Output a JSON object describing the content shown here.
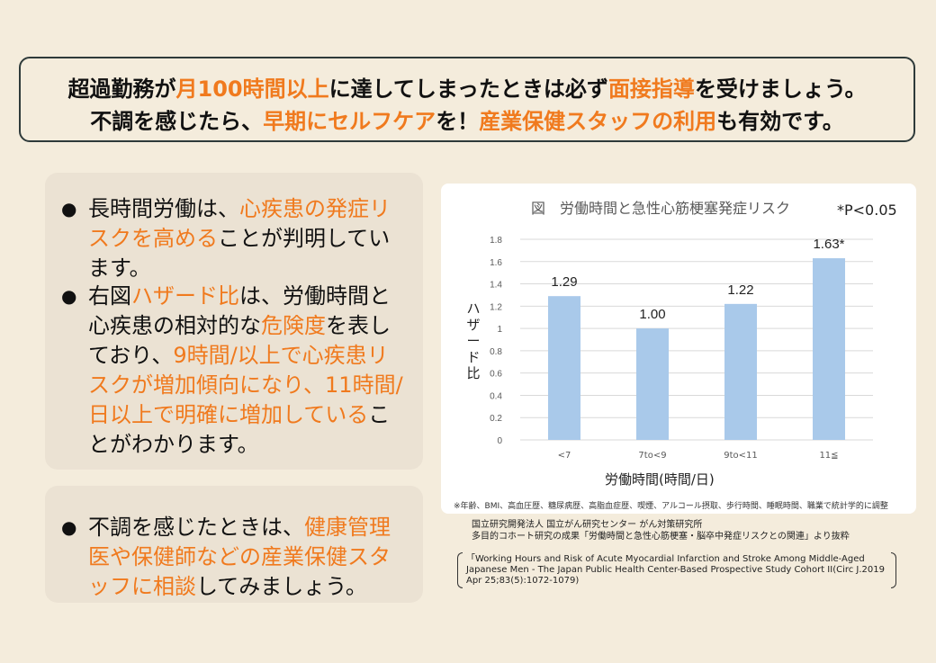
{
  "headline": {
    "line1": [
      {
        "text": "超過勤務が",
        "accent": false
      },
      {
        "text": "月100時間以上",
        "accent": true
      },
      {
        "text": "に達してしまったときは必ず",
        "accent": false
      },
      {
        "text": "面接指導",
        "accent": true
      },
      {
        "text": "を受けましょう。",
        "accent": false
      }
    ],
    "line2": [
      {
        "text": "不調を感じたら、",
        "accent": false
      },
      {
        "text": "早期にセルフケア",
        "accent": true
      },
      {
        "text": "を！",
        "accent": false
      },
      {
        "text": "産業保健スタッフの利用",
        "accent": true
      },
      {
        "text": "も有効です。",
        "accent": false
      }
    ]
  },
  "bullets_panel1": {
    "b1": [
      {
        "text": "長時間労働は、",
        "accent": false
      },
      {
        "text": "心疾患の発症リスクを高める",
        "accent": true
      },
      {
        "text": "ことが判明しています。",
        "accent": false
      }
    ],
    "b2": [
      {
        "text": "右図",
        "accent": false
      },
      {
        "text": "ハザード比",
        "accent": true
      },
      {
        "text": "は、労働時間と心疾患の相対的な",
        "accent": false
      },
      {
        "text": "危険度",
        "accent": true
      },
      {
        "text": "を表しており、",
        "accent": false
      },
      {
        "text": "9時間/以上で心疾患リスクが増加傾向になり、11時間/日以上で明確に増加している",
        "accent": true
      },
      {
        "text": "ことがわかります。",
        "accent": false
      }
    ]
  },
  "bullets_panel2": {
    "b3": [
      {
        "text": "不調を感じたときは、",
        "accent": false
      },
      {
        "text": "健康管理医や保健師などの産業保健スタッフに相談",
        "accent": true
      },
      {
        "text": "してみましょう。",
        "accent": false
      }
    ]
  },
  "bullet_symbol": "●",
  "chart_title": "図　労働時間と急性心筋梗塞発症リスク",
  "chart_significance": "*P<0.05",
  "chart_ylabel_chars": [
    "ハ",
    "ザ",
    "ー",
    "ド",
    "比"
  ],
  "chart_xlabel": "労働時間(時間/日)",
  "chart_note": "※年齢、BMI、高血圧歴、糖尿病歴、高脂血症歴、喫煙、アルコール摂取、歩行時間、睡眠時間、職業で統計学的に調整",
  "chart_data": {
    "type": "bar",
    "categories": [
      "<7",
      "7to<9",
      "9to<11",
      "11≦"
    ],
    "values": [
      1.29,
      1.0,
      1.22,
      1.63
    ],
    "data_labels": [
      "1.29",
      "1.00",
      "1.22",
      "1.63*"
    ],
    "ylim": [
      0,
      1.8
    ],
    "yticks": [
      "0",
      "0.2",
      "0.4",
      "0.6",
      "0.8",
      "1",
      "1.2",
      "1.4",
      "1.6",
      "1.8"
    ],
    "grid": true,
    "bar_color": "#a9c9ea"
  },
  "source_lines": [
    "国立研究開発法人 国立がん研究センター がん対策研究所",
    "多目的コホート研究の成果「労働時間と急性心筋梗塞・脳卒中発症リスクとの関連」より抜粋"
  ],
  "citation": "「Working Hours and Risk of Acute Myocardial Infarction and Stroke Among Middle-Aged Japanese Men - The Japan Public Health Center-Based Prospective Study Cohort II(Circ J.2019 Apr 25;83(5):1072-1079)",
  "colors": {
    "accent": "#f07a1e",
    "background": "#f4ecdc",
    "panel": "#ebe2d3"
  }
}
